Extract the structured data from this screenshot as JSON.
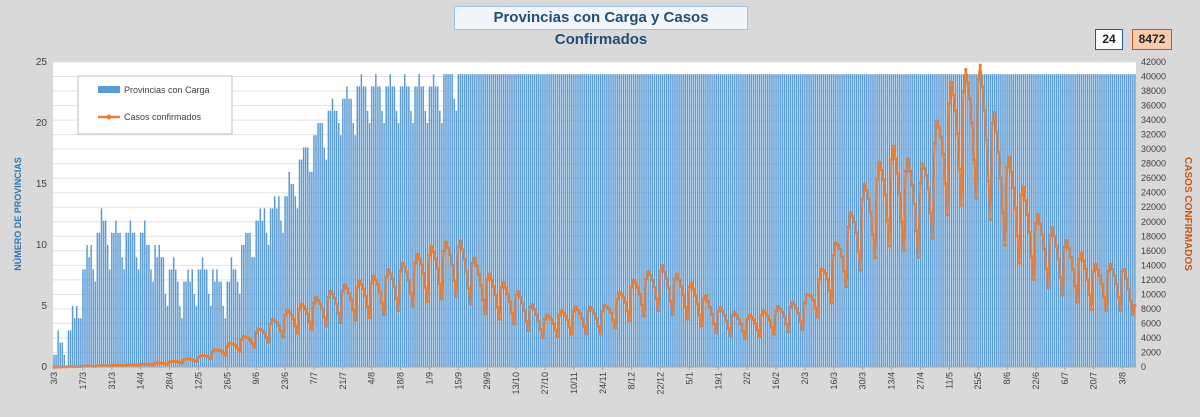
{
  "header": {
    "title": "Provincias con Carga y Casos Confirmados"
  },
  "badges": {
    "provinces": "24",
    "cases": "8472"
  },
  "colors": {
    "bar": "#5b9bd5",
    "line": "#ed7d31",
    "left_axis_title": "#2e75b6",
    "right_axis_title": "#c55a11"
  },
  "chart_data": {
    "type": "bar+line",
    "title": "Provincias con Carga y Casos Confirmados",
    "ylabel": "NÚMERO DE PROVINCIAS",
    "y2label": "CASOS  CONFIRMADOS",
    "ylim": [
      0,
      25
    ],
    "y2lim": [
      0,
      42000
    ],
    "yticks": [
      "0",
      "5",
      "10",
      "15",
      "20",
      "25"
    ],
    "y2ticks": [
      "0",
      "2000",
      "4000",
      "6000",
      "8000",
      "10000",
      "12000",
      "14000",
      "16000",
      "18000",
      "20000",
      "22000",
      "24000",
      "26000",
      "28000",
      "30000",
      "32000",
      "34000",
      "36000",
      "38000",
      "40000",
      "42000"
    ],
    "x_ticks": [
      "3/3",
      "17/3",
      "31/3",
      "14/4",
      "28/4",
      "12/5",
      "26/5",
      "9/6",
      "23/6",
      "7/7",
      "21/7",
      "4/8",
      "18/8",
      "1/9",
      "15/9",
      "29/9",
      "13/10",
      "27/10",
      "10/11",
      "24/11",
      "8/12",
      "22/12",
      "5/1",
      "19/1",
      "2/2",
      "16/2",
      "2/3",
      "16/3",
      "30/3",
      "13/4",
      "27/4",
      "11/5",
      "25/5",
      "8/6",
      "22/6",
      "6/7",
      "20/7",
      "3/8"
    ],
    "grid": true,
    "legend_position": "top-left",
    "series": [
      {
        "name": "Provincias con Carga",
        "type": "bar",
        "anchor_days": [
          0,
          10,
          14,
          24,
          28,
          42,
          56,
          63,
          70,
          84,
          98,
          112,
          126,
          140,
          154,
          168,
          182,
          196,
          210,
          238,
          266,
          294,
          322,
          350,
          378,
          406,
          434,
          448,
          462,
          476,
          490,
          518
        ],
        "anchor_values": [
          1,
          4,
          8,
          12,
          11,
          11,
          8,
          7,
          8,
          7,
          12,
          14,
          19,
          22,
          23,
          23,
          23,
          24,
          24,
          24,
          24,
          24,
          24,
          24,
          24,
          24,
          24,
          24,
          24,
          24,
          24,
          24
        ]
      },
      {
        "name": "Casos confirmados",
        "type": "line",
        "anchor_days": [
          0,
          14,
          28,
          42,
          56,
          70,
          84,
          98,
          112,
          126,
          140,
          154,
          168,
          182,
          196,
          210,
          224,
          238,
          252,
          266,
          280,
          294,
          308,
          322,
          336,
          350,
          364,
          378,
          392,
          406,
          420,
          434,
          448,
          462,
          476,
          490,
          504,
          518,
          524
        ],
        "anchor_values": [
          0,
          100,
          200,
          300,
          600,
          1200,
          2600,
          4300,
          6500,
          8000,
          9500,
          10500,
          12000,
          14000,
          15000,
          11000,
          9000,
          6000,
          7000,
          7000,
          10000,
          12000,
          10000,
          7000,
          6000,
          7000,
          8000,
          14000,
          21000,
          26000,
          23000,
          33000,
          36000,
          25000,
          18000,
          15000,
          12000,
          12000,
          8472
        ]
      }
    ],
    "final_values": {
      "provinces": 24,
      "cases": 8472
    }
  }
}
